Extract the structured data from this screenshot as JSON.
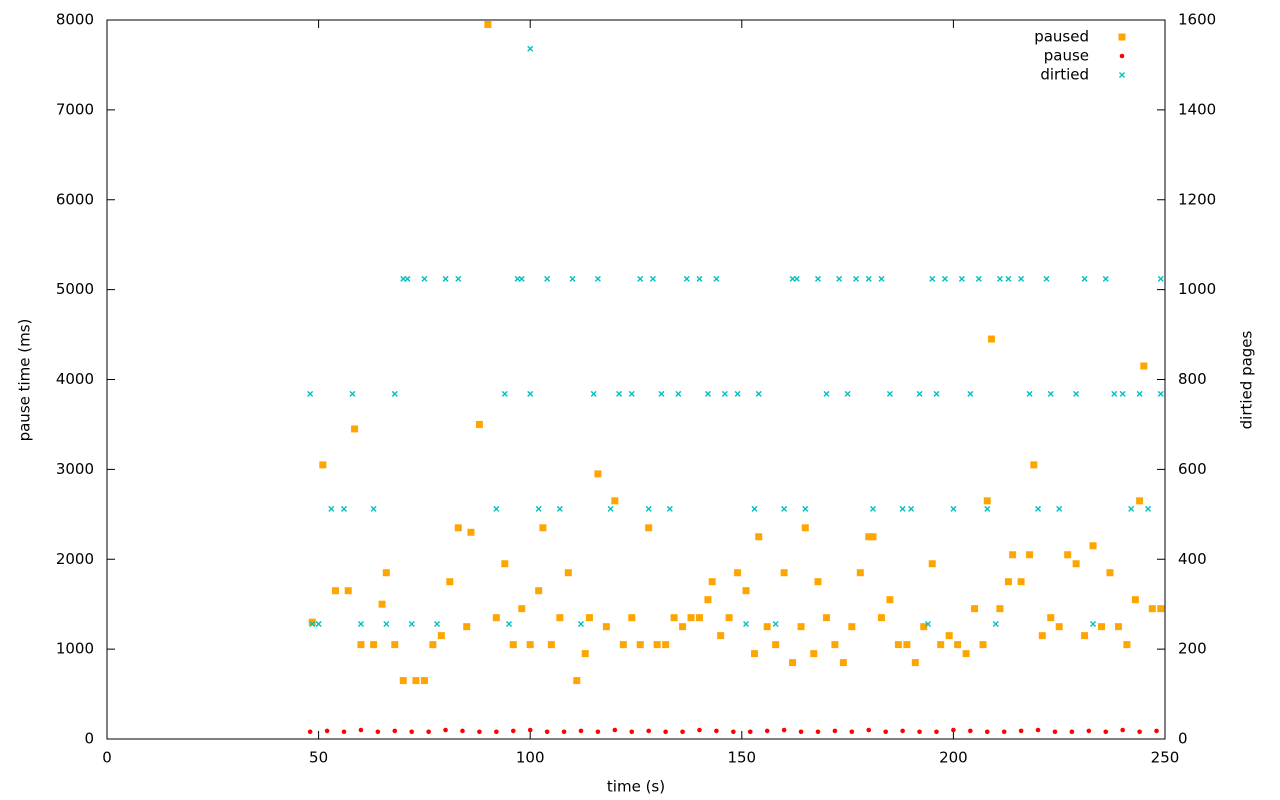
{
  "chart_data": {
    "type": "scatter",
    "xlabel": "time (s)",
    "ylabel": "pause time (ms)",
    "y2label": "dirtied pages",
    "xlim": [
      0,
      250
    ],
    "xticks": [
      0,
      50,
      100,
      150,
      200,
      250
    ],
    "ylim": [
      0,
      8000
    ],
    "yticks": [
      0,
      1000,
      2000,
      3000,
      4000,
      5000,
      6000,
      7000,
      8000
    ],
    "y2lim": [
      0,
      1600
    ],
    "y2ticks": [
      0,
      200,
      400,
      600,
      800,
      1000,
      1200,
      1400,
      1600
    ],
    "legend": "top-right",
    "series": [
      {
        "name": "paused",
        "color": "#ffa500",
        "marker": "square",
        "x": [
          48.5,
          51,
          54,
          57,
          58.5,
          60,
          63,
          65,
          66,
          68,
          70,
          73,
          75,
          77,
          79,
          81,
          83,
          85,
          86,
          88,
          90,
          92,
          94,
          96,
          98,
          100,
          102,
          103,
          105,
          107,
          109,
          111,
          113,
          114,
          116,
          118,
          120,
          122,
          124,
          126,
          128,
          130,
          132,
          134,
          136,
          138,
          140,
          142,
          143,
          145,
          147,
          149,
          151,
          153,
          154,
          156,
          158,
          160,
          162,
          164,
          165,
          167,
          168,
          170,
          172,
          174,
          176,
          178,
          180,
          181,
          183,
          185,
          187,
          189,
          191,
          193,
          195,
          197,
          199,
          201,
          203,
          205,
          207,
          208,
          209,
          211,
          213,
          214,
          216,
          218,
          219,
          221,
          223,
          225,
          227,
          229,
          231,
          233,
          235,
          237,
          239,
          241,
          243,
          244,
          245,
          247,
          249
        ],
        "values": [
          1300,
          3050,
          1650,
          1650,
          3450,
          1050,
          1050,
          1500,
          1850,
          1050,
          650,
          650,
          650,
          1050,
          1150,
          1750,
          2350,
          1250,
          2300,
          3500,
          7950,
          1350,
          1950,
          1050,
          1450,
          1050,
          1650,
          2350,
          1050,
          1350,
          1850,
          650,
          950,
          1350,
          2950,
          1250,
          2650,
          1050,
          1350,
          1050,
          2350,
          1050,
          1050,
          1350,
          1250,
          1350,
          1350,
          1550,
          1750,
          1150,
          1350,
          1850,
          1650,
          950,
          2250,
          1250,
          1050,
          1850,
          850,
          1250,
          2350,
          950,
          1750,
          1350,
          1050,
          850,
          1250,
          1850,
          2250,
          2250,
          1350,
          1550,
          1050,
          1050,
          850,
          1250,
          1950,
          1050,
          1150,
          1050,
          950,
          1450,
          1050,
          2650,
          4450,
          1450,
          1750,
          2050,
          1750,
          2050,
          3050,
          1150,
          1350,
          1250,
          2050,
          1950,
          1150,
          2150,
          1250,
          1850,
          1250,
          1050,
          1550,
          2650,
          4150,
          1450,
          1450
        ]
      },
      {
        "name": "pause",
        "color": "#ff0000",
        "marker": "dot",
        "x": [
          48,
          52,
          56,
          60,
          64,
          68,
          72,
          76,
          80,
          84,
          88,
          92,
          96,
          100,
          104,
          108,
          112,
          116,
          120,
          124,
          128,
          132,
          136,
          140,
          144,
          148,
          152,
          156,
          160,
          164,
          168,
          172,
          176,
          180,
          184,
          188,
          192,
          196,
          200,
          204,
          208,
          212,
          216,
          220,
          224,
          228,
          232,
          236,
          240,
          244,
          248
        ],
        "values": [
          80,
          90,
          80,
          100,
          80,
          90,
          80,
          80,
          100,
          90,
          80,
          80,
          90,
          100,
          80,
          80,
          90,
          80,
          100,
          80,
          90,
          80,
          80,
          100,
          90,
          80,
          80,
          90,
          100,
          80,
          80,
          90,
          80,
          100,
          80,
          90,
          80,
          80,
          100,
          90,
          80,
          80,
          90,
          100,
          80,
          80,
          90,
          80,
          100,
          80,
          90
        ]
      },
      {
        "name": "dirtied",
        "color": "#00c0c0",
        "marker": "cross",
        "axis": "y2",
        "x": [
          48,
          48.5,
          50,
          53,
          56,
          58,
          60,
          63,
          66,
          68,
          70,
          71,
          72,
          75,
          78,
          80,
          83,
          92,
          94,
          95,
          97,
          98,
          100,
          100,
          102,
          104,
          107,
          110,
          112,
          115,
          116,
          119,
          121,
          124,
          126,
          128,
          129,
          131,
          133,
          135,
          137,
          140,
          142,
          144,
          146,
          149,
          151,
          153,
          154,
          158,
          160,
          162,
          163,
          165,
          168,
          170,
          173,
          175,
          177,
          180,
          181,
          183,
          185,
          188,
          190,
          192,
          194,
          195,
          196,
          198,
          200,
          202,
          204,
          206,
          208,
          210,
          211,
          213,
          216,
          218,
          220,
          222,
          223,
          225,
          229,
          231,
          233,
          236,
          238,
          240,
          242,
          244,
          246,
          249,
          249
        ],
        "values": [
          768,
          256,
          256,
          512,
          512,
          768,
          256,
          512,
          256,
          768,
          1024,
          1024,
          256,
          1024,
          256,
          1024,
          1024,
          512,
          768,
          256,
          1024,
          1024,
          768,
          1536,
          512,
          1024,
          512,
          1024,
          256,
          768,
          1024,
          512,
          768,
          768,
          1024,
          512,
          1024,
          768,
          512,
          768,
          1024,
          1024,
          768,
          1024,
          768,
          768,
          256,
          512,
          768,
          256,
          512,
          1024,
          1024,
          512,
          1024,
          768,
          1024,
          768,
          1024,
          1024,
          512,
          1024,
          768,
          512,
          512,
          768,
          256,
          1024,
          768,
          1024,
          512,
          1024,
          768,
          1024,
          512,
          256,
          1024,
          1024,
          1024,
          768,
          512,
          1024,
          768,
          512,
          768,
          1024,
          256,
          1024,
          768,
          768,
          512,
          768,
          512,
          1024,
          768
        ]
      }
    ]
  }
}
